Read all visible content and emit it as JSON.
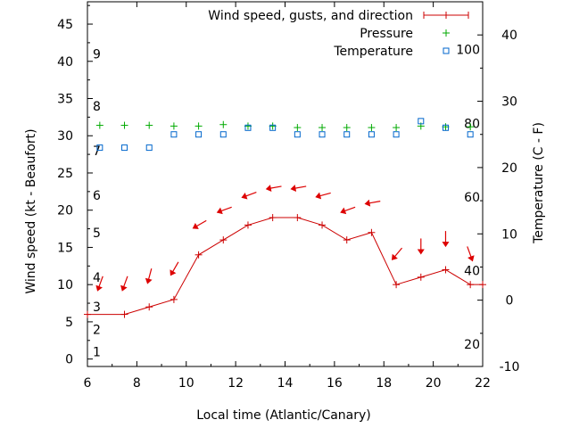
{
  "chart_data": {
    "type": "line",
    "xlabel": "Local time (Atlantic/Canary)",
    "ylabel_left": "Wind speed (kt - Beaufort)",
    "ylabel_right": "Temperature (C - F)",
    "xlim": [
      6,
      22
    ],
    "ylim_left": [
      -1,
      48
    ],
    "ylim_right": [
      -10,
      45
    ],
    "x_ticks": [
      "6",
      "8",
      "10",
      "12",
      "14",
      "16",
      "18",
      "20",
      "22"
    ],
    "y_ticks_left": [
      "0",
      "5",
      "10",
      "15",
      "20",
      "25",
      "30",
      "35",
      "40",
      "45"
    ],
    "y_ticks_right": [
      "-10",
      "0",
      "10",
      "20",
      "30",
      "40"
    ],
    "beaufort_labels": [
      "1",
      "2",
      "3",
      "4",
      "5",
      "6",
      "7",
      "8",
      "9"
    ],
    "fahrenheit_labels": [
      "20",
      "40",
      "60",
      "80",
      "100"
    ],
    "legend": [
      "Wind speed, gusts, and direction",
      "Pressure",
      "Temperature"
    ],
    "colors": {
      "wind": "#cc0000",
      "arrows": "#dd0000",
      "pressure": "#00aa00",
      "temperature": "#0066cc"
    },
    "series": [
      {
        "name": "Wind speed, gusts, and direction",
        "x": [
          6,
          7.5,
          8.5,
          9.5,
          10.5,
          11.5,
          12.5,
          13.5,
          14.5,
          15.5,
          16.5,
          17.5,
          18.5,
          19.5,
          20.5,
          21.5,
          22
        ],
        "values": [
          6,
          6,
          7,
          8,
          14,
          16,
          18,
          19,
          19,
          18,
          16,
          17,
          10,
          11,
          12,
          10,
          10
        ]
      },
      {
        "name": "Pressure",
        "x": [
          6.5,
          7.5,
          8.5,
          9.5,
          10.5,
          11.5,
          12.5,
          13.5,
          14.5,
          15.5,
          16.5,
          17.5,
          18.5,
          19.5,
          20.5,
          21.5
        ],
        "values": [
          31.4,
          31.4,
          31.4,
          31.3,
          31.3,
          31.5,
          31.3,
          31.3,
          31.1,
          31.1,
          31.1,
          31.1,
          31.1,
          31.3,
          31.2,
          31.2
        ]
      },
      {
        "name": "Temperature",
        "x": [
          6.5,
          7.5,
          8.5,
          9.5,
          10.5,
          11.5,
          12.5,
          13.5,
          14.5,
          15.5,
          16.5,
          17.5,
          18.5,
          19.5,
          20.5,
          21.5
        ],
        "values": [
          23,
          23,
          23,
          25,
          25,
          25,
          26,
          26,
          25,
          25,
          25,
          25,
          25,
          27,
          26,
          25
        ]
      }
    ],
    "wind_arrows": {
      "x": [
        6.5,
        7.5,
        8.5,
        9.5,
        10.5,
        11.5,
        12.5,
        13.5,
        14.5,
        15.5,
        16.5,
        17.5,
        18.5,
        19.5,
        20.5,
        21.5
      ],
      "y": [
        10,
        10,
        11,
        12,
        18,
        20,
        22,
        23,
        23,
        22,
        20,
        21,
        14,
        15,
        16,
        14
      ],
      "direction_deg": [
        20,
        20,
        15,
        30,
        60,
        70,
        70,
        80,
        80,
        75,
        70,
        80,
        40,
        0,
        0,
        340
      ]
    }
  }
}
